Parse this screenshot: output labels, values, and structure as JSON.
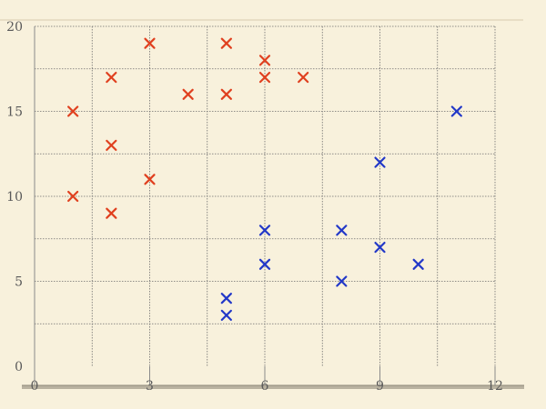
{
  "chart_data": {
    "type": "scatter",
    "title": "",
    "xlabel": "",
    "ylabel": "",
    "xlim": [
      0,
      12
    ],
    "ylim": [
      0,
      20
    ],
    "x_ticks": [
      0,
      3,
      6,
      9,
      12
    ],
    "y_ticks": [
      0,
      5,
      10,
      15,
      20
    ],
    "x_tick_labels": [
      "0",
      "3",
      "6",
      "9",
      "12"
    ],
    "y_tick_labels": [
      "0",
      "5",
      "10",
      "15",
      "20"
    ],
    "grid": true,
    "marker": "x",
    "series": [
      {
        "name": "red",
        "color": "#e0401f",
        "points": [
          [
            1,
            15
          ],
          [
            1,
            10
          ],
          [
            2,
            17
          ],
          [
            2,
            13
          ],
          [
            2,
            9
          ],
          [
            3,
            19
          ],
          [
            3,
            11
          ],
          [
            4,
            16
          ],
          [
            5,
            19
          ],
          [
            5,
            16
          ],
          [
            6,
            18
          ],
          [
            6,
            17
          ],
          [
            7,
            17
          ]
        ]
      },
      {
        "name": "blue",
        "color": "#2238c8",
        "points": [
          [
            5,
            4
          ],
          [
            5,
            3
          ],
          [
            6,
            8
          ],
          [
            6,
            6
          ],
          [
            8,
            8
          ],
          [
            8,
            5
          ],
          [
            9,
            12
          ],
          [
            9,
            7
          ],
          [
            10,
            6
          ],
          [
            11,
            15
          ]
        ]
      }
    ]
  }
}
